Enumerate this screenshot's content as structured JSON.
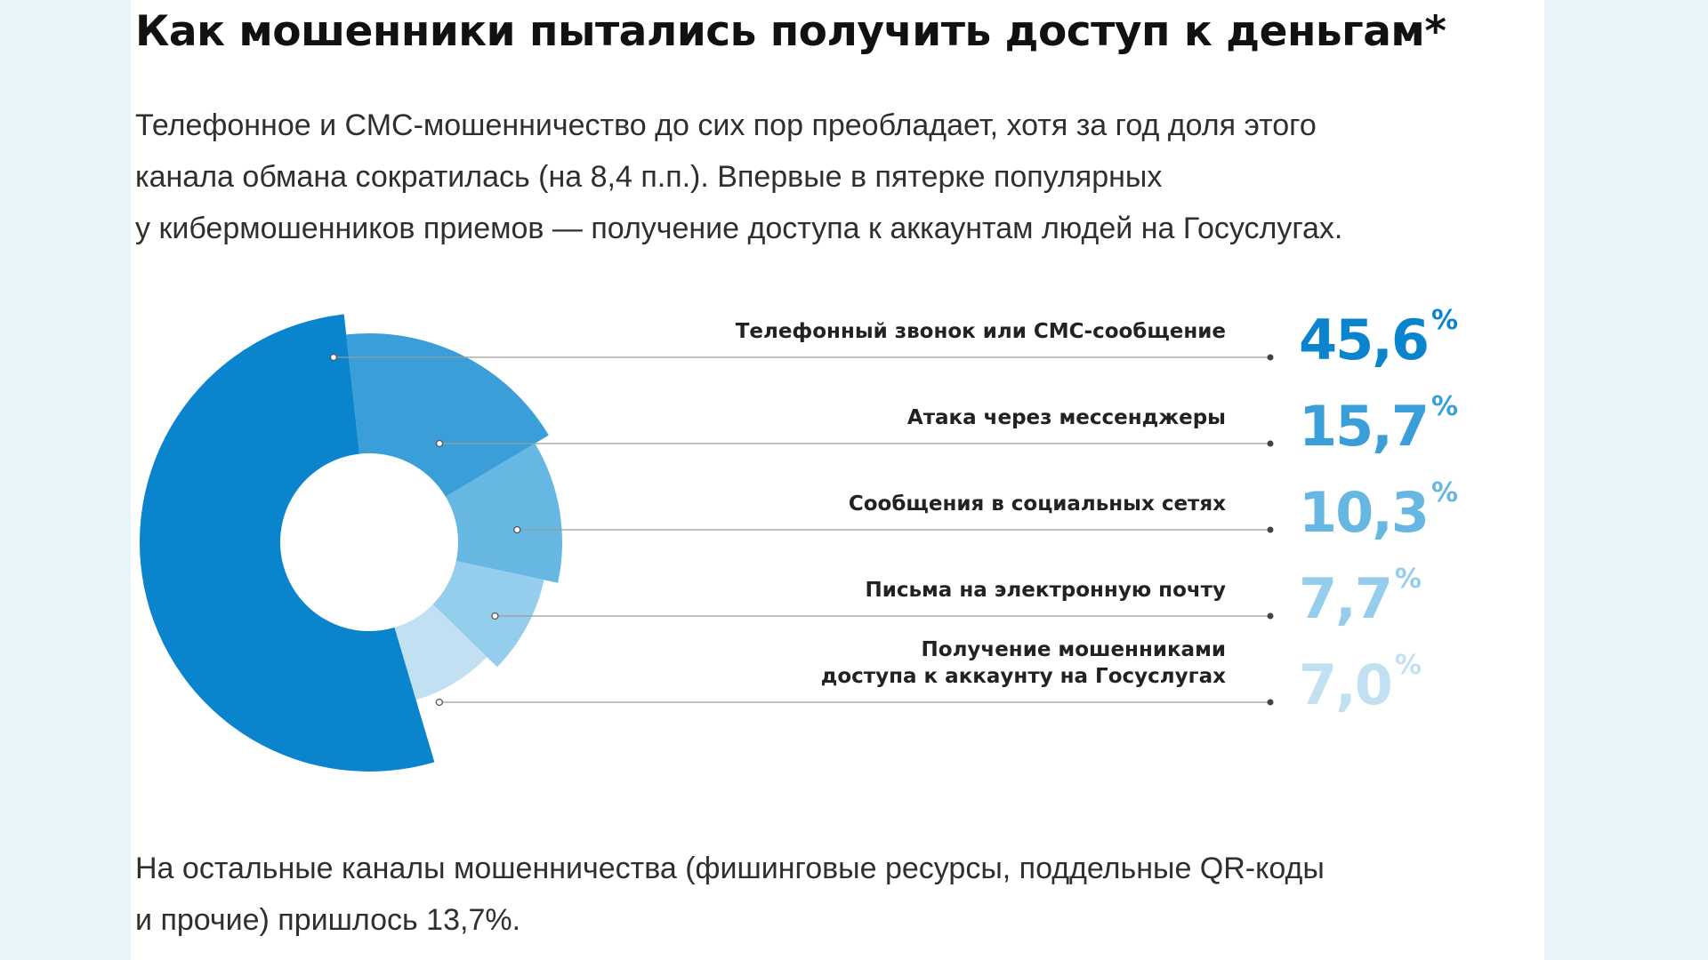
{
  "title": "Как мошенники пытались получить доступ к деньгам*",
  "intro_lines": [
    "Телефонное и СМС-мошенничество до сих пор преобладает, хотя за год доля этого",
    "канала обмана сократилась (на 8,4 п.п.). Впервые в пятерке популярных",
    "у кибермошенников приемов — получение доступа к аккаунтам людей на Госуслугах."
  ],
  "outro_lines": [
    "На остальные каналы мошенничества (фишинговые ресурсы, поддельные QR-коды",
    "и прочие) пришлось 13,7%."
  ],
  "chart_data": {
    "type": "pie",
    "variant": "donut",
    "unit": "%",
    "categories": [
      "Телефонный звонок или СМС-сообщение",
      "Атака через мессенджеры",
      "Сообщения в социальных сетях",
      "Письма на электронную почту",
      "Получение мошенниками доступа к аккаунту на Госуслугах"
    ],
    "label_lines": [
      [
        "Телефонный звонок или СМС-сообщение"
      ],
      [
        "Атака через мессенджеры"
      ],
      [
        "Сообщения в социальных сетях"
      ],
      [
        "Письма на электронную почту"
      ],
      [
        "Получение мошенниками",
        "доступа к аккаунту на Госуслугах"
      ]
    ],
    "values": [
      45.6,
      15.7,
      10.3,
      7.7,
      7.0
    ],
    "value_labels": [
      "45,6",
      "15,7",
      "10,3",
      "7,7",
      "7,0"
    ],
    "colors": [
      "#0a84cc",
      "#3a9fd8",
      "#66b7e2",
      "#95cdec",
      "#c1e1f3"
    ],
    "percent_sign": "%"
  }
}
